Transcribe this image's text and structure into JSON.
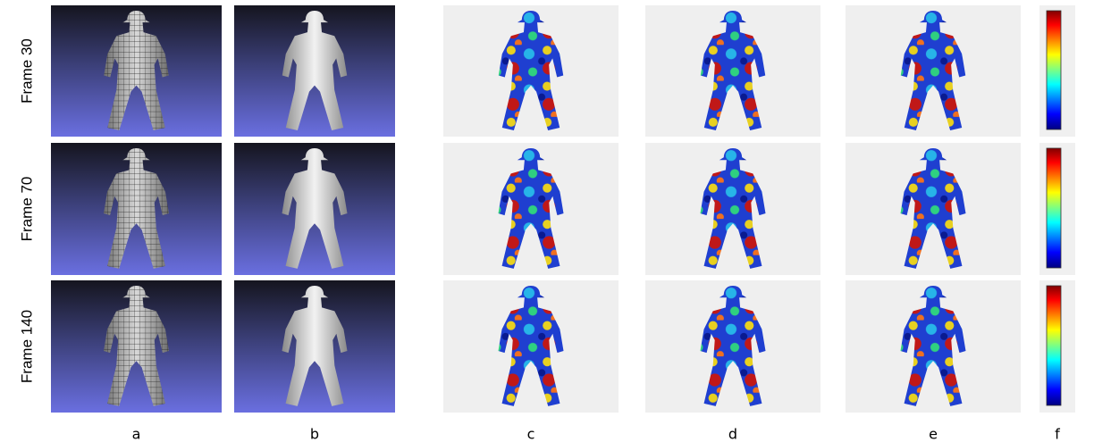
{
  "row_labels": [
    "Frame 30",
    "Frame 70",
    "Frame 140"
  ],
  "column_labels": [
    "a",
    "b",
    "c",
    "d",
    "e",
    "f"
  ]
}
